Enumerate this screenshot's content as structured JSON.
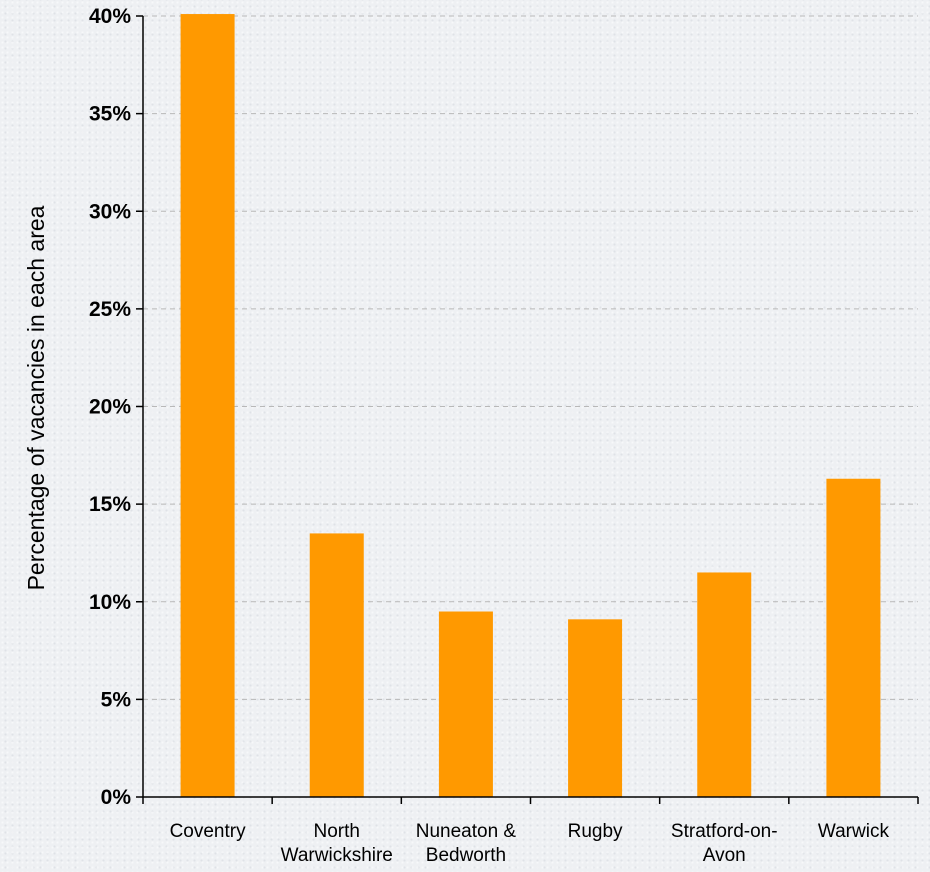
{
  "chart_data": {
    "type": "bar",
    "title": "",
    "xlabel": "",
    "ylabel": "Percentage of vacancies in each area",
    "categories": [
      [
        "Coventry"
      ],
      [
        "North",
        "Warwickshire"
      ],
      [
        "Nuneaton &",
        "Bedworth"
      ],
      [
        "Rugby"
      ],
      [
        "Stratford-on-",
        "Avon"
      ],
      [
        "Warwick"
      ]
    ],
    "values": [
      40.1,
      13.5,
      9.5,
      9.1,
      11.5,
      16.3
    ],
    "ylim": [
      0,
      40
    ],
    "yticks": [
      "0%",
      "5%",
      "10%",
      "15%",
      "20%",
      "25%",
      "30%",
      "35%",
      "40%"
    ],
    "grid": true,
    "legend": "none",
    "colors": {
      "bar": "#ff9900",
      "grid": "#b8b8b8",
      "axis": "#000000"
    }
  }
}
